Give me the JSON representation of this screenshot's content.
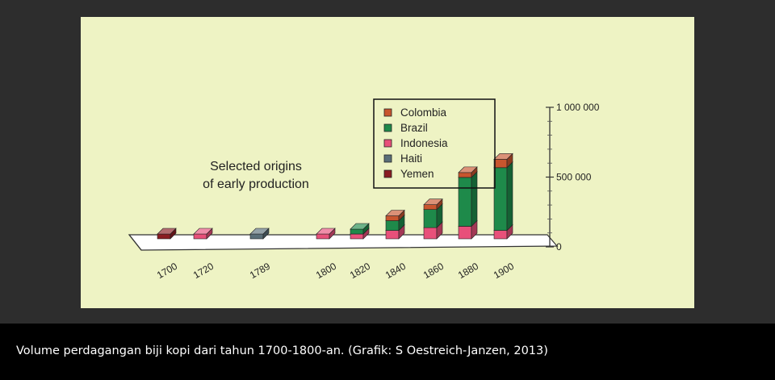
{
  "caption": "Volume perdagangan biji kopi dari tahun 1700-1800-an. (Grafik: S Oestreich-Janzen, 2013)",
  "chart_data": {
    "type": "bar",
    "stacked": true,
    "three_d": true,
    "annotation": [
      "Selected origins",
      "of early production"
    ],
    "categories": [
      "1700",
      "1720",
      "1789",
      "1800",
      "1820",
      "1840",
      "1860",
      "1880",
      "1900"
    ],
    "yticks": [
      {
        "value": 0,
        "label": "0"
      },
      {
        "value": 500000,
        "label": "500 000"
      },
      {
        "value": 1000000,
        "label": "1 000 000"
      }
    ],
    "ylim": [
      0,
      1000000
    ],
    "legend_position": "top-center",
    "series": [
      {
        "name": "Colombia",
        "color": "#c8552e",
        "values": [
          0,
          0,
          0,
          0,
          0,
          3000,
          5000,
          25000,
          60000
        ]
      },
      {
        "name": "Brazil",
        "color": "#1e8a4a",
        "values": [
          0,
          0,
          0,
          0,
          25000,
          70000,
          130000,
          350000,
          450000
        ]
      },
      {
        "name": "Indonesia",
        "color": "#e8507a",
        "values": [
          0,
          20000,
          0,
          25000,
          10000,
          60000,
          80000,
          90000,
          60000
        ]
      },
      {
        "name": "Haiti",
        "color": "#5a6e78",
        "values": [
          0,
          0,
          30000,
          0,
          0,
          0,
          0,
          0,
          0
        ]
      },
      {
        "name": "Yemen",
        "color": "#8a1c22",
        "values": [
          15000,
          0,
          0,
          0,
          0,
          0,
          0,
          0,
          0
        ]
      }
    ]
  }
}
